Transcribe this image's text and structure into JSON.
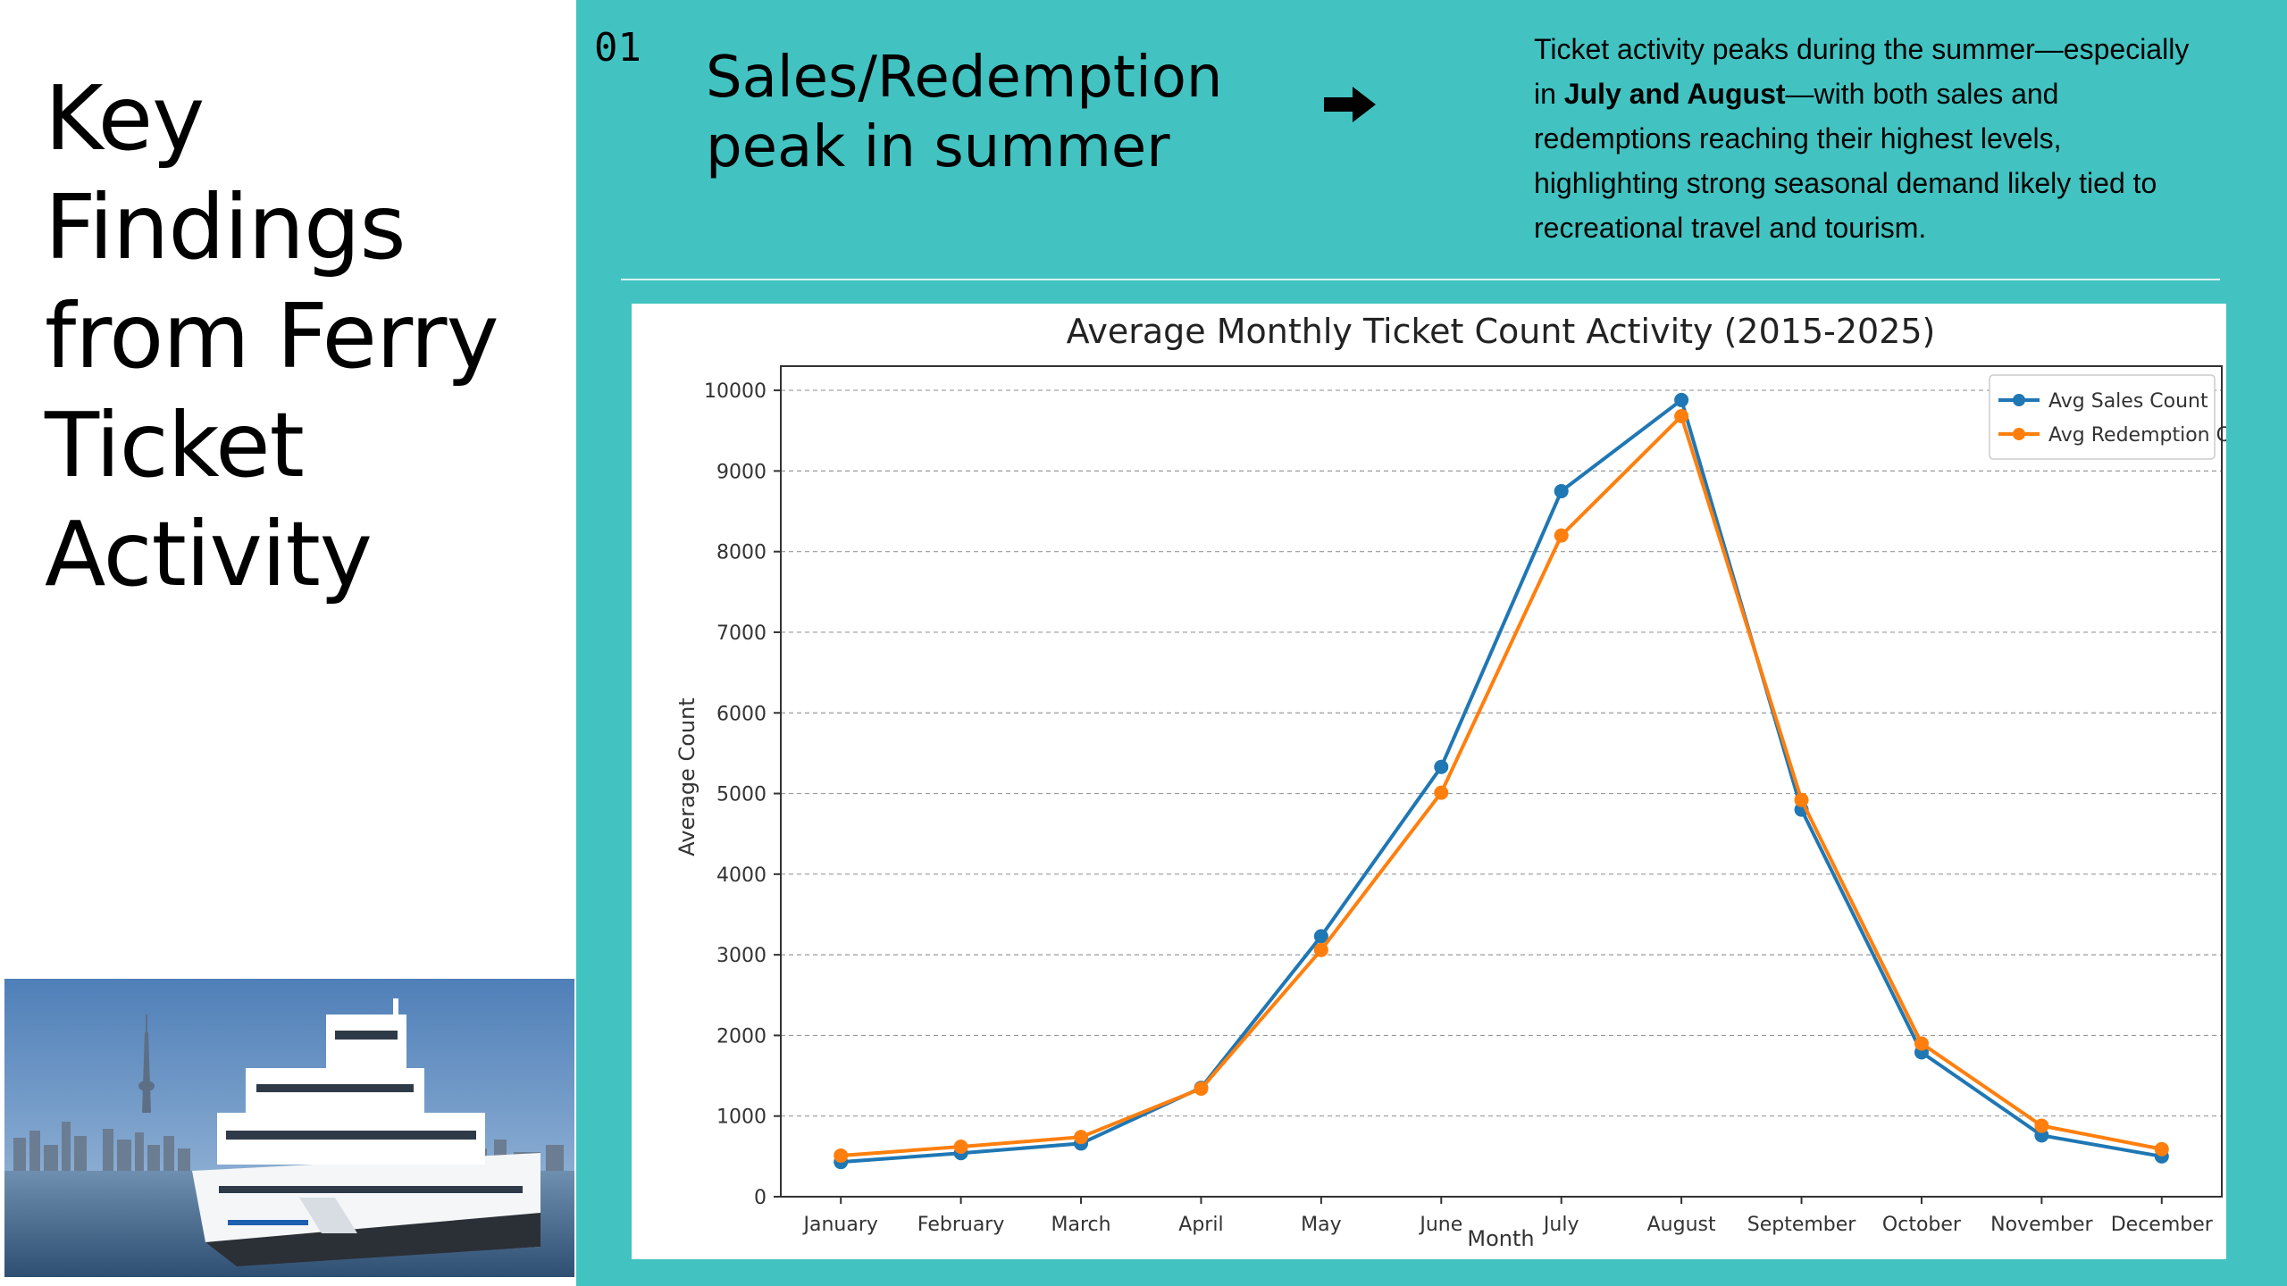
{
  "slide": {
    "title_lines": [
      "Key",
      "Findings",
      "from Ferry",
      "Ticket",
      "Activity"
    ],
    "finding_number": "01",
    "finding_title_lines": [
      "Sales/Redemption",
      "peak in summer"
    ],
    "description": {
      "part1": "Ticket activity peaks during the summer—especially in ",
      "bold": "July and August",
      "part2": "—with both sales and redemptions reaching their highest levels, highlighting strong seasonal demand likely tied to recreational travel and tourism."
    },
    "arrow_icon": "right-arrow-icon",
    "photo_icon": "ferry-photo",
    "colors": {
      "accent": "#42c3c1",
      "sales": "#1f77b4",
      "redemption": "#ff7f0e"
    }
  },
  "chart_data": {
    "type": "line",
    "title": "Average Monthly Ticket Count Activity (2015-2025)",
    "xlabel": "Month",
    "ylabel": "Average Count",
    "categories": [
      "January",
      "February",
      "March",
      "April",
      "May",
      "June",
      "July",
      "August",
      "September",
      "October",
      "November",
      "December"
    ],
    "series": [
      {
        "name": "Avg Sales Count",
        "color": "#1f77b4",
        "values": [
          430,
          540,
          660,
          1350,
          3230,
          5330,
          8750,
          9880,
          4800,
          1790,
          760,
          500
        ]
      },
      {
        "name": "Avg Redemption Count",
        "color": "#ff7f0e",
        "values": [
          510,
          620,
          740,
          1340,
          3060,
          5010,
          8200,
          9680,
          4920,
          1900,
          880,
          590
        ]
      }
    ],
    "ylim": [
      0,
      10300
    ],
    "yticks": [
      0,
      1000,
      2000,
      3000,
      4000,
      5000,
      6000,
      7000,
      8000,
      9000,
      10000
    ],
    "grid": true,
    "legend": "top-right"
  }
}
